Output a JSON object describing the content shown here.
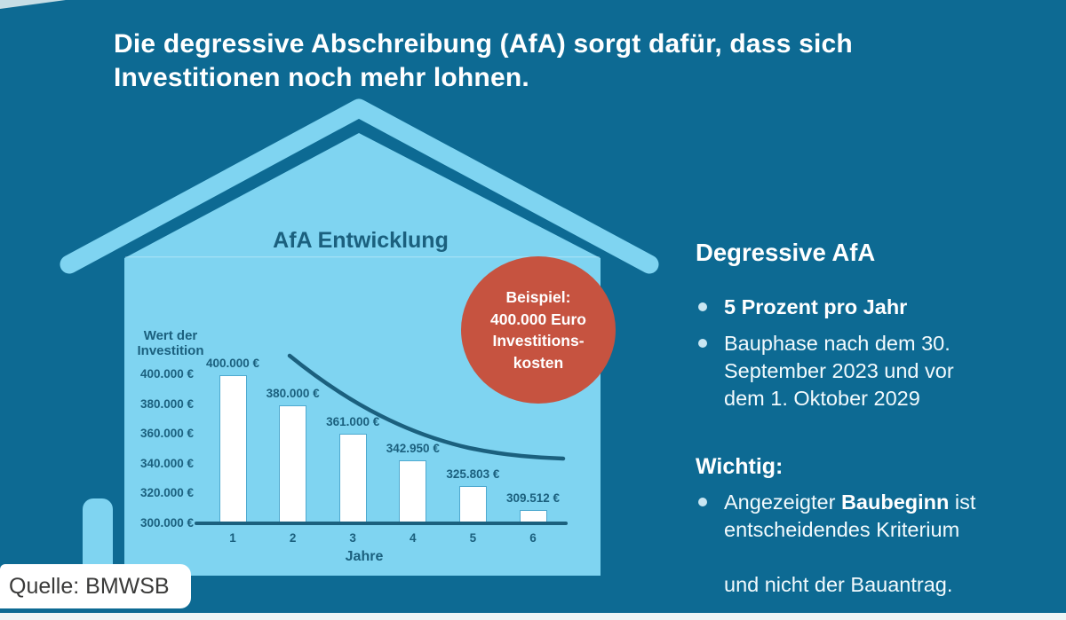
{
  "colors": {
    "background": "#0d6a93",
    "house": "#7fd4f1",
    "ink": "#1b607e",
    "badge": "#c65340",
    "text_light": "#f2fafd",
    "strip": "#eef5f6"
  },
  "header": {
    "title_line1": "Die degressive Abschreibung (AfA) sorgt dafür, dass sich",
    "title_line2": "Investitionen noch mehr lohnen."
  },
  "chart_data": {
    "type": "bar",
    "title": "AfA Entwicklung",
    "xlabel": "Jahre",
    "ylabel": "Wert der\nInvestition",
    "categories": [
      "1",
      "2",
      "3",
      "4",
      "5",
      "6"
    ],
    "values": [
      400000,
      380000,
      361000,
      342950,
      325803,
      309512
    ],
    "bar_labels": [
      "400.000 €",
      "380.000 €",
      "361.000 €",
      "342.950 €",
      "325.803 €",
      "309.512 €"
    ],
    "ylim": [
      300000,
      400000
    ],
    "y_ticks": [
      {
        "value": 400000,
        "label": "400.000 €"
      },
      {
        "value": 380000,
        "label": "380.000 €"
      },
      {
        "value": 360000,
        "label": "360.000 €"
      },
      {
        "value": 340000,
        "label": "340.000 €"
      },
      {
        "value": 320000,
        "label": "320.000 €"
      },
      {
        "value": 300000,
        "label": "300.000 €"
      }
    ],
    "grid": false,
    "legend": false,
    "bar_color": "#ffffff",
    "annotation": "exponential decay trend line drawn above the bars"
  },
  "badge": {
    "lines": [
      "Beispiel:",
      "400.000 Euro",
      "Investitions-",
      "kosten"
    ]
  },
  "panel": {
    "heading": "Degressive AfA",
    "bullet1": "5 Prozent pro Jahr",
    "bullet2": "Bauphase nach dem 30.\nSeptember 2023 und vor\ndem 1. Oktober 2029",
    "subheading": "Wichtig:",
    "bullet3_pre": "Angezeigter ",
    "bullet3_bold": "Baubeginn",
    "bullet3_rest": " ist",
    "bullet3_line2": "entscheidendes Kriterium",
    "bullet3_line3": "und nicht der Bauantrag."
  },
  "source": {
    "text": "Quelle: BMWSB"
  }
}
